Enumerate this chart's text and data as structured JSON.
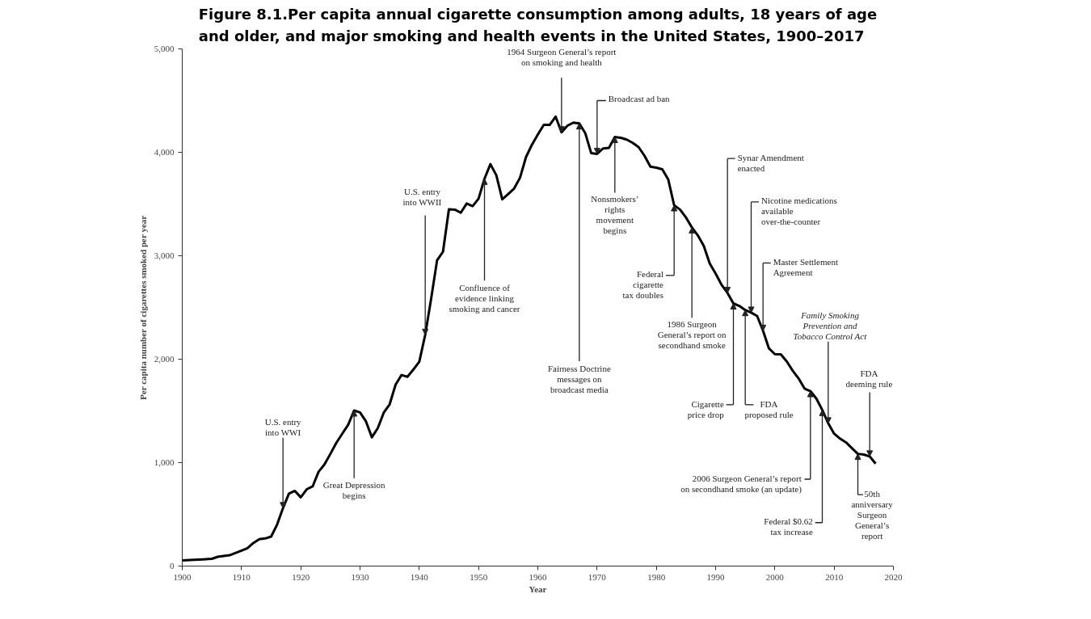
{
  "chart_data": {
    "type": "line",
    "title": "Figure 8.1.Per capita annual cigarette consumption among adults, 18 years of age\nand older, and major smoking and health events in the United States, 1900–2017",
    "xlabel": "Year",
    "ylabel": "Per capita number of cigarettes smoked per year",
    "x": [
      1900,
      1902,
      1905,
      1906,
      1908,
      1910,
      1911,
      1912,
      1913,
      1914,
      1915,
      1916,
      1917,
      1918,
      1919,
      1920,
      1921,
      1922,
      1923,
      1924,
      1925,
      1926,
      1927,
      1928,
      1929,
      1930,
      1931,
      1932,
      1933,
      1934,
      1935,
      1936,
      1937,
      1938,
      1939,
      1940,
      1941,
      1942,
      1943,
      1944,
      1945,
      1946,
      1947,
      1948,
      1949,
      1950,
      1951,
      1952,
      1953,
      1954,
      1955,
      1956,
      1957,
      1958,
      1959,
      1960,
      1961,
      1962,
      1963,
      1964,
      1965,
      1966,
      1967,
      1968,
      1969,
      1970,
      1971,
      1972,
      1973,
      1974,
      1975,
      1976,
      1977,
      1978,
      1979,
      1980,
      1981,
      1982,
      1983,
      1984,
      1985,
      1986,
      1987,
      1988,
      1989,
      1990,
      1991,
      1992,
      1993,
      1994,
      1995,
      1996,
      1997,
      1998,
      1999,
      2000,
      2001,
      2002,
      2003,
      2004,
      2005,
      2006,
      2007,
      2008,
      2009,
      2010,
      2011,
      2012,
      2013,
      2014,
      2015,
      2016,
      2017
    ],
    "series": [
      {
        "color": "#000000",
        "values": [
          54,
          60,
          70,
          90,
          105,
          150,
          173,
          223,
          260,
          267,
          285,
          400,
          560,
          700,
          727,
          665,
          742,
          770,
          911,
          982,
          1085,
          1191,
          1279,
          1366,
          1504,
          1485,
          1399,
          1245,
          1334,
          1483,
          1564,
          1754,
          1847,
          1830,
          1900,
          1976,
          2236,
          2585,
          2956,
          3039,
          3449,
          3446,
          3416,
          3505,
          3480,
          3552,
          3744,
          3886,
          3778,
          3546,
          3597,
          3650,
          3755,
          3953,
          4073,
          4171,
          4266,
          4265,
          4345,
          4194,
          4258,
          4287,
          4280,
          4186,
          3993,
          3985,
          4037,
          4043,
          4148,
          4141,
          4123,
          4092,
          4051,
          3967,
          3861,
          3851,
          3836,
          3739,
          3488,
          3446,
          3370,
          3274,
          3197,
          3096,
          2926,
          2828,
          2720,
          2641,
          2539,
          2515,
          2475,
          2450,
          2418,
          2275,
          2104,
          2049,
          2047,
          1979,
          1890,
          1814,
          1716,
          1691,
          1619,
          1509,
          1380,
          1280,
          1232,
          1196,
          1140,
          1085,
          1078,
          1060,
          990
        ]
      }
    ],
    "xlim": [
      1900,
      2020
    ],
    "xticks": [
      1900,
      1910,
      1920,
      1930,
      1940,
      1950,
      1960,
      1970,
      1980,
      1990,
      2000,
      2010,
      2020
    ],
    "ylim": [
      0,
      5000
    ],
    "yticks": [
      0,
      {
        "value": 1000,
        "label": "1,000"
      },
      {
        "value": 2000,
        "label": "2,000"
      },
      {
        "value": 3000,
        "label": "3,000"
      },
      {
        "value": 4000,
        "label": "4,000"
      },
      {
        "value": 5000,
        "label": "5,000"
      }
    ],
    "grid": false,
    "marker": "none",
    "line_style": "solid",
    "annotations": [
      {
        "text": "U.S. entry\ninto WWI",
        "x": 1917,
        "y": 560
      },
      {
        "text": "Great Depression\nbegins",
        "x": 1929,
        "y": 1504
      },
      {
        "text": "U.S. entry\ninto WWII",
        "x": 1941,
        "y": 2236
      },
      {
        "text": "Confluence of\nevidence linking\nsmoking and cancer",
        "x": 1951,
        "y": 3744
      },
      {
        "text": "1964 Surgeon General’s report\non smoking and health",
        "x": 1964,
        "y": 4194
      },
      {
        "text": "Fairness Doctrine\nmessages on\nbroadcast media",
        "x": 1967,
        "y": 4280
      },
      {
        "text": "Broadcast ad ban",
        "x": 1970,
        "y": 3985
      },
      {
        "text": "Nonsmokers’\nrights\nmovement\nbegins",
        "x": 1973,
        "y": 4148
      },
      {
        "text": "Federal\ncigarette\ntax doubles",
        "x": 1983,
        "y": 3488
      },
      {
        "text": "1986 Surgeon\nGeneral’s report on\nsecondhand smoke",
        "x": 1986,
        "y": 3274
      },
      {
        "text": "Synar Amendment\nenacted",
        "x": 1992,
        "y": 2641
      },
      {
        "text": "Nicotine medications\navailable\nover-the-counter",
        "x": 1996,
        "y": 2450
      },
      {
        "text": "Master Settlement\nAgreement",
        "x": 1998,
        "y": 2275
      },
      {
        "text": "Family Smoking\nPrevention and\nTobacco Control Act",
        "x": 2009,
        "y": 1380
      },
      {
        "text": "FDA\ndeeming rule",
        "x": 2016,
        "y": 1060
      },
      {
        "text": "Cigarette\nprice drop",
        "x": 1993,
        "y": 2539
      },
      {
        "text": "FDA\nproposed rule",
        "x": 1995,
        "y": 2475
      },
      {
        "text": "2006 Surgeon General’s report\non secondhand smoke (an update)",
        "x": 2006,
        "y": 1691
      },
      {
        "text": "Federal $0.62\ntax increase",
        "x": 2008,
        "y": 1509
      },
      {
        "text": "50th\nanniversary\nSurgeon\nGeneral’s\nreport",
        "x": 2014,
        "y": 1085
      }
    ]
  }
}
